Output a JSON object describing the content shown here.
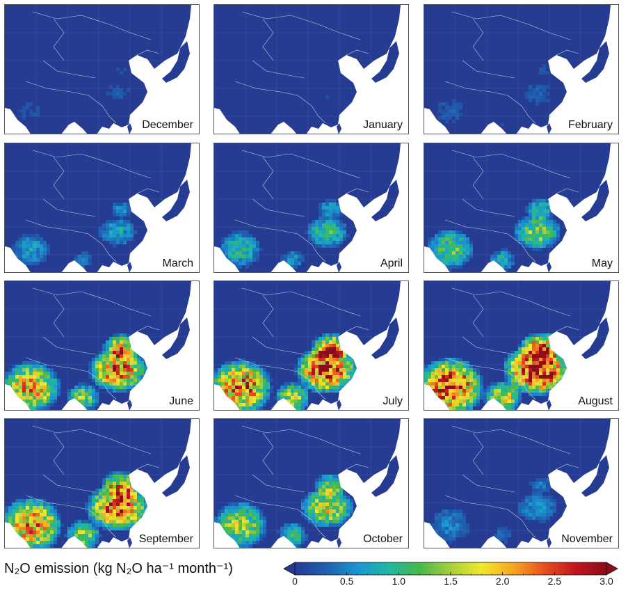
{
  "panels": [
    {
      "month": "December",
      "intensity": 0.08,
      "spread": 0.25
    },
    {
      "month": "January",
      "intensity": 0.05,
      "spread": 0.2
    },
    {
      "month": "February",
      "intensity": 0.1,
      "spread": 0.3
    },
    {
      "month": "March",
      "intensity": 0.25,
      "spread": 0.35
    },
    {
      "month": "April",
      "intensity": 0.35,
      "spread": 0.45
    },
    {
      "month": "May",
      "intensity": 0.45,
      "spread": 0.55
    },
    {
      "month": "June",
      "intensity": 0.75,
      "spread": 0.8
    },
    {
      "month": "July",
      "intensity": 0.85,
      "spread": 0.9
    },
    {
      "month": "August",
      "intensity": 0.95,
      "spread": 1.0
    },
    {
      "month": "September",
      "intensity": 0.8,
      "spread": 0.9
    },
    {
      "month": "October",
      "intensity": 0.55,
      "spread": 0.7
    },
    {
      "month": "November",
      "intensity": 0.2,
      "spread": 0.45
    }
  ],
  "legend": {
    "title": "N₂O emission (kg N₂O ha⁻¹ month⁻¹)",
    "ticks": [
      "0",
      "0.5",
      "1.0",
      "1.5",
      "2.0",
      "2.5",
      "3.0"
    ],
    "min": 0,
    "max": 3.0,
    "colors": [
      "#243a94",
      "#1f5fb0",
      "#1b94d1",
      "#1fb7a6",
      "#48b84a",
      "#a6cf3a",
      "#f2e82b",
      "#f5a623",
      "#e8501f",
      "#c1141f",
      "#8a0d1a"
    ]
  },
  "map_colors": {
    "ocean": "#ffffff",
    "land": "#263c93",
    "border": "#c9cde0"
  }
}
